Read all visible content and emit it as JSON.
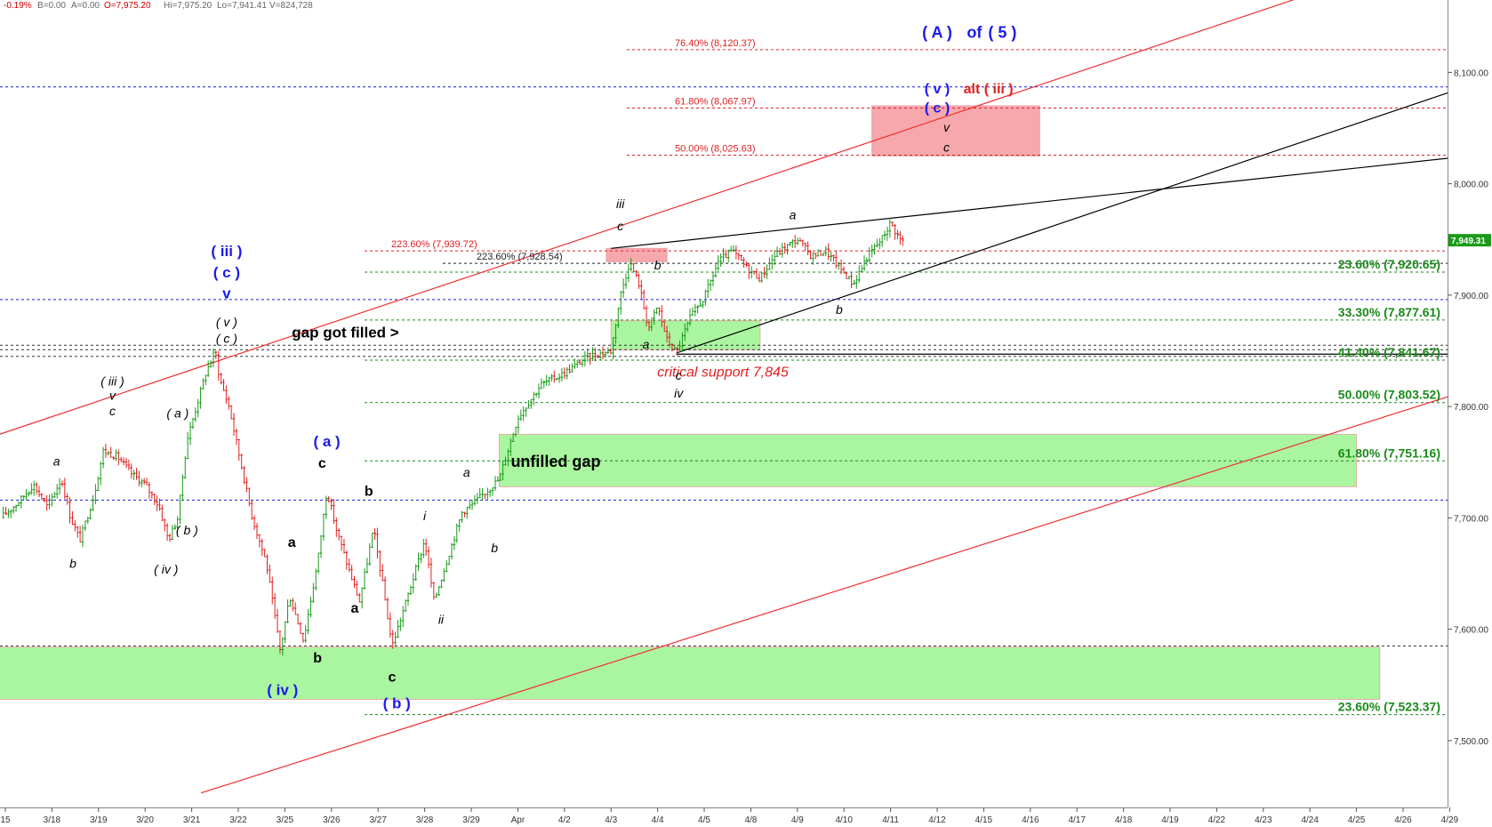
{
  "header": [
    {
      "text": "-0.19%",
      "color": "#d00000"
    },
    {
      "text": "B=0.00",
      "color": "#666666"
    },
    {
      "text": "A=0.00",
      "color": "#666666"
    },
    {
      "text": "O=7,975.20",
      "color": "#d00000"
    },
    {
      "text": "Hi=7,975.20",
      "color": "#666666"
    },
    {
      "text": "Lo=7,941.41",
      "color": "#666666"
    },
    {
      "text": "V=824,728",
      "color": "#666666"
    }
  ],
  "colors": {
    "up": "#1a9a1a",
    "down": "#e02020",
    "wave_blue": "#1a1aee",
    "fib_red": "#e02020",
    "fib_green": "#1a8a1a",
    "zone_green": "#aaf5a0",
    "zone_red": "#f7a8ac",
    "channel_red": "#f03030"
  },
  "chart_data": {
    "type": "candlestick",
    "instrument_note": "",
    "y_axis": {
      "range": [
        7440,
        8165
      ],
      "ticks": [
        "7,500.00",
        "7,600.00",
        "7,700.00",
        "7,800.00",
        "7,900.00",
        "8,000.00",
        "8,100.00"
      ],
      "tick_values": [
        7500,
        7600,
        7700,
        7800,
        7900,
        8000,
        8100
      ]
    },
    "last_price": {
      "label": "7,949.31",
      "value": 7949.31
    },
    "x_axis": {
      "labels": [
        "15",
        "3/18",
        "3/19",
        "3/20",
        "3/21",
        "3/22",
        "3/25",
        "3/26",
        "3/27",
        "3/28",
        "3/29",
        "Apr",
        "4/2",
        "4/3",
        "4/4",
        "4/5",
        "4/8",
        "4/9",
        "4/10",
        "4/11",
        "4/12",
        "4/15",
        "4/16",
        "4/17",
        "4/18",
        "4/19",
        "4/22",
        "4/23",
        "4/24",
        "4/25",
        "4/26",
        "4/29"
      ]
    },
    "price_path": [
      [
        -0.1,
        7700
      ],
      [
        0.3,
        7715
      ],
      [
        0.6,
        7730
      ],
      [
        0.9,
        7710
      ],
      [
        1.2,
        7735
      ],
      [
        1.4,
        7700
      ],
      [
        1.6,
        7680
      ],
      [
        1.9,
        7720
      ],
      [
        2.1,
        7760
      ],
      [
        2.4,
        7755
      ],
      [
        2.7,
        7740
      ],
      [
        3.0,
        7730
      ],
      [
        3.3,
        7710
      ],
      [
        3.5,
        7680
      ],
      [
        3.7,
        7700
      ],
      [
        3.9,
        7770
      ],
      [
        4.1,
        7800
      ],
      [
        4.3,
        7830
      ],
      [
        4.5,
        7850
      ],
      [
        4.6,
        7825
      ],
      [
        4.8,
        7800
      ],
      [
        5.0,
        7760
      ],
      [
        5.3,
        7700
      ],
      [
        5.6,
        7660
      ],
      [
        5.9,
        7580
      ],
      [
        6.1,
        7630
      ],
      [
        6.4,
        7590
      ],
      [
        6.7,
        7660
      ],
      [
        6.9,
        7725
      ],
      [
        7.1,
        7690
      ],
      [
        7.4,
        7650
      ],
      [
        7.6,
        7625
      ],
      [
        7.9,
        7690
      ],
      [
        8.1,
        7640
      ],
      [
        8.3,
        7585
      ],
      [
        8.6,
        7625
      ],
      [
        9.0,
        7680
      ],
      [
        9.2,
        7625
      ],
      [
        9.5,
        7665
      ],
      [
        9.8,
        7705
      ],
      [
        10.1,
        7715
      ],
      [
        10.6,
        7735
      ],
      [
        11.0,
        7790
      ],
      [
        11.5,
        7820
      ],
      [
        12.0,
        7830
      ],
      [
        12.5,
        7845
      ],
      [
        13.0,
        7850
      ],
      [
        13.2,
        7900
      ],
      [
        13.4,
        7930
      ],
      [
        13.6,
        7910
      ],
      [
        13.8,
        7870
      ],
      [
        14.0,
        7890
      ],
      [
        14.2,
        7860
      ],
      [
        14.4,
        7848
      ],
      [
        14.7,
        7880
      ],
      [
        15.0,
        7898
      ],
      [
        15.3,
        7930
      ],
      [
        15.6,
        7940
      ],
      [
        15.9,
        7925
      ],
      [
        16.2,
        7915
      ],
      [
        16.5,
        7935
      ],
      [
        16.8,
        7945
      ],
      [
        17.0,
        7950
      ],
      [
        17.3,
        7935
      ],
      [
        17.6,
        7940
      ],
      [
        17.9,
        7925
      ],
      [
        18.2,
        7910
      ],
      [
        18.5,
        7935
      ],
      [
        18.8,
        7950
      ],
      [
        19.0,
        7965
      ],
      [
        19.2,
        7950
      ],
      [
        19.3,
        7949
      ]
    ],
    "fib_levels": [
      {
        "label": "23.60% (7,920.65)",
        "value": 7920.65,
        "color": "#1a8a1a"
      },
      {
        "label": "33.30% (7,877.61)",
        "value": 7877.61,
        "color": "#1a8a1a"
      },
      {
        "label": "41.40% (7,841.67)",
        "value": 7841.67,
        "color": "#1a8a1a"
      },
      {
        "label": "50.00% (7,803.52)",
        "value": 7803.52,
        "color": "#1a8a1a"
      },
      {
        "label": "61.80% (7,751.16)",
        "value": 7751.16,
        "color": "#1a8a1a"
      },
      {
        "label": "23.60% (7,523.37)",
        "value": 7523.37,
        "color": "#1a8a1a"
      },
      {
        "label": "76.40% (8,120.37)",
        "value": 8120.37,
        "color": "#e02020"
      },
      {
        "label": "61.80% (8,067.97)",
        "value": 8067.97,
        "color": "#e02020"
      },
      {
        "label": "50.00% (8,025.63)",
        "value": 8025.63,
        "color": "#e02020"
      },
      {
        "label": "223.60% (7,939.72)",
        "value": 7939.72,
        "color": "#e02020"
      },
      {
        "label": "223.60% (7,928.54)",
        "value": 7928.54,
        "color": "#222222"
      }
    ],
    "zones": [
      {
        "name": "unfilled gap",
        "label": "unfilled gap",
        "x": [
          10.6,
          29.0
        ],
        "y": [
          7728,
          7775
        ]
      },
      {
        "name": "gap got filled",
        "label": "",
        "x": [
          13.0,
          16.2
        ],
        "y": [
          7851,
          7877
        ]
      },
      {
        "name": "lower support zone",
        "label": "",
        "x": [
          -0.3,
          29.5
        ],
        "y": [
          7537,
          7584
        ]
      },
      {
        "name": "upper target zone",
        "label": "",
        "x": [
          18.6,
          22.2
        ],
        "y": [
          8025,
          8070
        ]
      },
      {
        "name": "top marker",
        "label": "",
        "x": [
          12.9,
          14.2
        ],
        "y": [
          7930,
          7942
        ]
      }
    ],
    "annotations": [
      {
        "text": "gap got filled >",
        "x": 7.3,
        "y": 7862,
        "color": "#000000",
        "size": 17,
        "bold": true,
        "italic": false
      },
      {
        "text": "critical support 7,845",
        "x": 15.4,
        "y": 7827,
        "color": "#e02020",
        "size": 16,
        "bold": false,
        "italic": true
      },
      {
        "text": "( A )",
        "x": 20.0,
        "y": 8131,
        "color": "#1a1aee",
        "size": 18,
        "bold": true,
        "italic": false
      },
      {
        "text": "of",
        "x": 20.8,
        "y": 8131,
        "color": "#1a1aee",
        "size": 18,
        "bold": true,
        "italic": false
      },
      {
        "text": "( 5 )",
        "x": 21.4,
        "y": 8131,
        "color": "#1a1aee",
        "size": 18,
        "bold": true,
        "italic": false
      },
      {
        "text": "( v )",
        "x": 20.0,
        "y": 8081,
        "color": "#1a1aee",
        "size": 16,
        "bold": true,
        "italic": false
      },
      {
        "text": "alt ( iii )",
        "x": 21.1,
        "y": 8081,
        "color": "#e02020",
        "size": 16,
        "bold": true,
        "italic": false
      },
      {
        "text": "( c )",
        "x": 20.0,
        "y": 8064,
        "color": "#1a1aee",
        "size": 16,
        "bold": true,
        "italic": false
      },
      {
        "text": "v",
        "x": 20.2,
        "y": 8047,
        "color": "#000000",
        "size": 14,
        "bold": false,
        "italic": true
      },
      {
        "text": "c",
        "x": 20.2,
        "y": 8029,
        "color": "#000000",
        "size": 14,
        "bold": false,
        "italic": true
      },
      {
        "text": "( iii )",
        "x": 4.75,
        "y": 7935,
        "color": "#1a1aee",
        "size": 17,
        "bold": true,
        "italic": false
      },
      {
        "text": "( c )",
        "x": 4.75,
        "y": 7916,
        "color": "#1a1aee",
        "size": 17,
        "bold": true,
        "italic": false
      },
      {
        "text": "v",
        "x": 4.75,
        "y": 7897,
        "color": "#1a1aee",
        "size": 17,
        "bold": true,
        "italic": false
      },
      {
        "text": "( v )",
        "x": 4.75,
        "y": 7872,
        "color": "#000000",
        "size": 14,
        "bold": false,
        "italic": true
      },
      {
        "text": "( c )",
        "x": 4.75,
        "y": 7857,
        "color": "#000000",
        "size": 14,
        "bold": false,
        "italic": true
      },
      {
        "text": "( iii )",
        "x": 2.3,
        "y": 7819,
        "color": "#000000",
        "size": 14,
        "bold": false,
        "italic": true
      },
      {
        "text": "v",
        "x": 2.3,
        "y": 7806,
        "color": "#000000",
        "size": 14,
        "bold": false,
        "italic": true
      },
      {
        "text": "c",
        "x": 2.3,
        "y": 7792,
        "color": "#000000",
        "size": 14,
        "bold": false,
        "italic": true
      },
      {
        "text": "( a )",
        "x": 3.7,
        "y": 7790,
        "color": "#000000",
        "size": 14,
        "bold": false,
        "italic": true
      },
      {
        "text": "( b )",
        "x": 3.9,
        "y": 7685,
        "color": "#000000",
        "size": 14,
        "bold": false,
        "italic": true
      },
      {
        "text": "( iv )",
        "x": 3.45,
        "y": 7650,
        "color": "#000000",
        "size": 14,
        "bold": false,
        "italic": true
      },
      {
        "text": "a",
        "x": 1.1,
        "y": 7747,
        "color": "#000000",
        "size": 14,
        "bold": false,
        "italic": true
      },
      {
        "text": "b",
        "x": 1.45,
        "y": 7655,
        "color": "#000000",
        "size": 14,
        "bold": false,
        "italic": true
      },
      {
        "text": "( a )",
        "x": 6.9,
        "y": 7764,
        "color": "#1a1aee",
        "size": 17,
        "bold": true,
        "italic": false
      },
      {
        "text": "c",
        "x": 6.8,
        "y": 7745,
        "color": "#000000",
        "size": 16,
        "bold": true,
        "italic": false
      },
      {
        "text": "a",
        "x": 6.15,
        "y": 7674,
        "color": "#000000",
        "size": 16,
        "bold": true,
        "italic": false
      },
      {
        "text": "a",
        "x": 7.5,
        "y": 7615,
        "color": "#000000",
        "size": 16,
        "bold": true,
        "italic": false
      },
      {
        "text": "b",
        "x": 7.8,
        "y": 7720,
        "color": "#000000",
        "size": 16,
        "bold": true,
        "italic": false
      },
      {
        "text": "b",
        "x": 6.7,
        "y": 7570,
        "color": "#000000",
        "size": 16,
        "bold": true,
        "italic": false
      },
      {
        "text": "( iv )",
        "x": 5.95,
        "y": 7541,
        "color": "#1a1aee",
        "size": 17,
        "bold": true,
        "italic": false
      },
      {
        "text": "c",
        "x": 8.3,
        "y": 7553,
        "color": "#000000",
        "size": 16,
        "bold": true,
        "italic": false
      },
      {
        "text": "( b )",
        "x": 8.4,
        "y": 7529,
        "color": "#1a1aee",
        "size": 17,
        "bold": true,
        "italic": false
      },
      {
        "text": "i",
        "x": 9.0,
        "y": 7698,
        "color": "#000000",
        "size": 14,
        "bold": false,
        "italic": true
      },
      {
        "text": "ii",
        "x": 9.35,
        "y": 7605,
        "color": "#000000",
        "size": 14,
        "bold": false,
        "italic": true
      },
      {
        "text": "a",
        "x": 9.9,
        "y": 7737,
        "color": "#000000",
        "size": 14,
        "bold": false,
        "italic": true
      },
      {
        "text": "b",
        "x": 10.5,
        "y": 7669,
        "color": "#000000",
        "size": 14,
        "bold": false,
        "italic": true
      },
      {
        "text": "iii",
        "x": 13.2,
        "y": 7978,
        "color": "#000000",
        "size": 14,
        "bold": false,
        "italic": true
      },
      {
        "text": "c",
        "x": 13.2,
        "y": 7958,
        "color": "#000000",
        "size": 14,
        "bold": false,
        "italic": true
      },
      {
        "text": "b",
        "x": 14.0,
        "y": 7923,
        "color": "#000000",
        "size": 14,
        "bold": false,
        "italic": true
      },
      {
        "text": "a",
        "x": 13.75,
        "y": 7852,
        "color": "#000000",
        "size": 14,
        "bold": false,
        "italic": true
      },
      {
        "text": "c",
        "x": 14.45,
        "y": 7824,
        "color": "#000000",
        "size": 14,
        "bold": false,
        "italic": true
      },
      {
        "text": "iv",
        "x": 14.45,
        "y": 7808,
        "color": "#000000",
        "size": 14,
        "bold": false,
        "italic": true
      },
      {
        "text": "a",
        "x": 16.9,
        "y": 7968,
        "color": "#000000",
        "size": 14,
        "bold": false,
        "italic": true
      },
      {
        "text": "b",
        "x": 17.9,
        "y": 7883,
        "color": "#000000",
        "size": 14,
        "bold": false,
        "italic": true
      }
    ],
    "trendlines": [
      {
        "name": "upper red channel",
        "color": "#f03030",
        "p1": [
          -0.2,
          7774
        ],
        "p2": [
          28.7,
          8180
        ]
      },
      {
        "name": "lower red channel",
        "color": "#f03030",
        "p1": [
          4.2,
          7453
        ],
        "p2": [
          31.2,
          7812
        ]
      },
      {
        "name": "upper black line",
        "color": "#000000",
        "p1": [
          13.0,
          7942
        ],
        "p2": [
          31.2,
          8024
        ]
      },
      {
        "name": "lower black line",
        "color": "#000000",
        "p1": [
          14.4,
          7848
        ],
        "p2": [
          31.2,
          8085
        ]
      },
      {
        "name": "support horizontal",
        "color": "#000000",
        "p1": [
          14.4,
          7847
        ],
        "p2": [
          31.2,
          7847
        ]
      }
    ],
    "reference_lines": [
      {
        "name": "blue dotted high",
        "value": 8087,
        "color": "#1a1aee",
        "dashed": true
      },
      {
        "name": "blue dotted 3/21 high",
        "value": 7896,
        "color": "#1a1aee",
        "dashed": true
      },
      {
        "name": "blue dotted low",
        "value": 7716,
        "color": "#1a1aee",
        "dashed": true
      },
      {
        "name": "black dotted 1",
        "value": 7855,
        "color": "#333333",
        "dashed": true
      },
      {
        "name": "black dotted 2",
        "value": 7851,
        "color": "#333333",
        "dashed": true
      },
      {
        "name": "black dotted 3",
        "value": 7845,
        "color": "#333333",
        "dashed": true
      },
      {
        "name": "black dotted low",
        "value": 7585,
        "color": "#333333",
        "dashed": true
      }
    ]
  }
}
